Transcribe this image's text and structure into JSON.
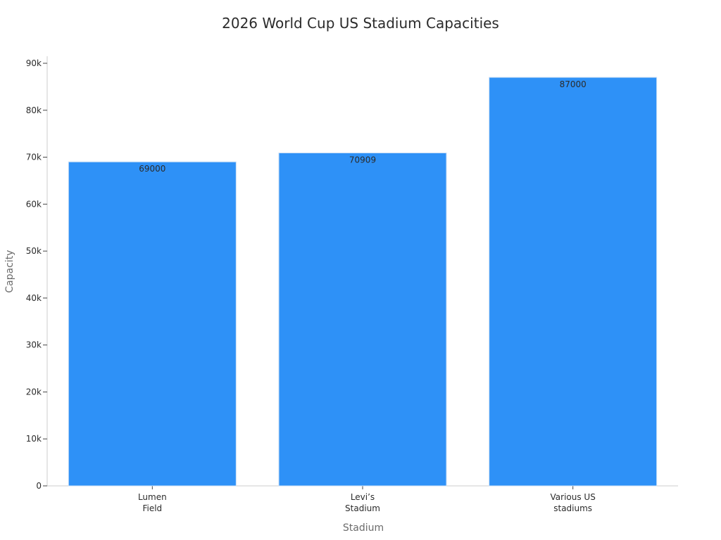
{
  "chart_data": {
    "type": "bar",
    "title": "2026 World Cup US Stadium Capacities",
    "xlabel": "Stadium",
    "ylabel": "Capacity",
    "categories": [
      [
        "Lumen",
        "Field"
      ],
      [
        "Levi’s",
        "Stadium"
      ],
      [
        "Various US",
        "stadiums"
      ]
    ],
    "values": [
      69000,
      70909,
      87000
    ],
    "data_labels": [
      "69000",
      "70909",
      "87000"
    ],
    "ylim": [
      0,
      90000
    ],
    "yticks": [
      0,
      10000,
      20000,
      30000,
      40000,
      50000,
      60000,
      70000,
      80000,
      90000
    ],
    "ytick_labels": [
      "0",
      "10k",
      "20k",
      "30k",
      "40k",
      "50k",
      "60k",
      "70k",
      "80k",
      "90k"
    ],
    "grid": false,
    "legend": "none",
    "colors": {
      "bar": "#2e91f7",
      "bar_edge": "#c9def5",
      "axis": "#cccccc",
      "text": "#2b2b2b",
      "axis_title": "#6b6b6b"
    }
  }
}
